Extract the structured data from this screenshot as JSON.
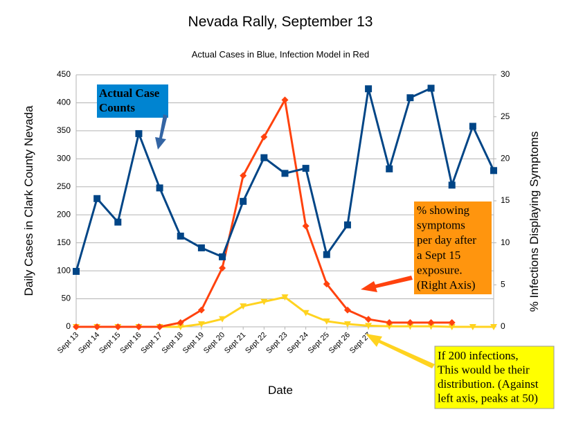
{
  "chart_data": {
    "type": "line",
    "title": "Nevada Rally, September 13",
    "subtitle": "Actual Cases in Blue, Infection Model in Red",
    "xlabel": "Date",
    "ylabel": "Daily Cases in Clark County Nevada",
    "y2label": "% Infections Displaying Symptoms",
    "categories": [
      "Sept 13",
      "Sept 14",
      "Sept 15",
      "Sept 16",
      "Sept 17",
      "Sept 18",
      "Sept 19",
      "Sept 20",
      "Sept 21",
      "Sept 22",
      "Sept 23",
      "Sept 24",
      "Sept 25",
      "Sept 26",
      "Sept 27",
      null,
      null,
      null,
      null,
      null,
      null
    ],
    "ylim": [
      0,
      450
    ],
    "yticks": [
      0,
      50,
      100,
      150,
      200,
      250,
      300,
      350,
      400,
      450
    ],
    "y2lim": [
      0,
      30
    ],
    "y2ticks": [
      0,
      5,
      10,
      15,
      20,
      25,
      30
    ],
    "grid": true,
    "series": [
      {
        "name": "Actual Cases",
        "color": "#004586",
        "marker": "square",
        "values": [
          99,
          229,
          187,
          345,
          248,
          162,
          141,
          125,
          224,
          302,
          274,
          283,
          129,
          182,
          425,
          282,
          409,
          426,
          253,
          358,
          279
        ]
      },
      {
        "name": "Infection Model",
        "color": "#ff420e",
        "marker": "diamond",
        "axis": "y2",
        "values": [
          0,
          0,
          0,
          0,
          0,
          0.5,
          2,
          7,
          18,
          22.6,
          27,
          12,
          5.1,
          2,
          0.9,
          0.5,
          0.5,
          0.5,
          0.5,
          null,
          null
        ]
      },
      {
        "name": "200 Infections",
        "color": "#ffd320",
        "marker": "triangle",
        "values": [
          0,
          0,
          0,
          0,
          0,
          0,
          5,
          14,
          37,
          45,
          53,
          25,
          10,
          5,
          2,
          1,
          1,
          1,
          0,
          0,
          0
        ]
      }
    ],
    "annotations": [
      {
        "lines": [
          "Actual Case",
          "Counts"
        ]
      },
      {
        "lines": [
          "% showing",
          "symptoms",
          "per day after",
          "a Sept 15",
          "exposure.",
          "(Right Axis)"
        ]
      },
      {
        "lines": [
          "If 200 infections,",
          "This would be their",
          "distribution. (Against",
          "left axis, peaks at 50)"
        ]
      }
    ]
  }
}
